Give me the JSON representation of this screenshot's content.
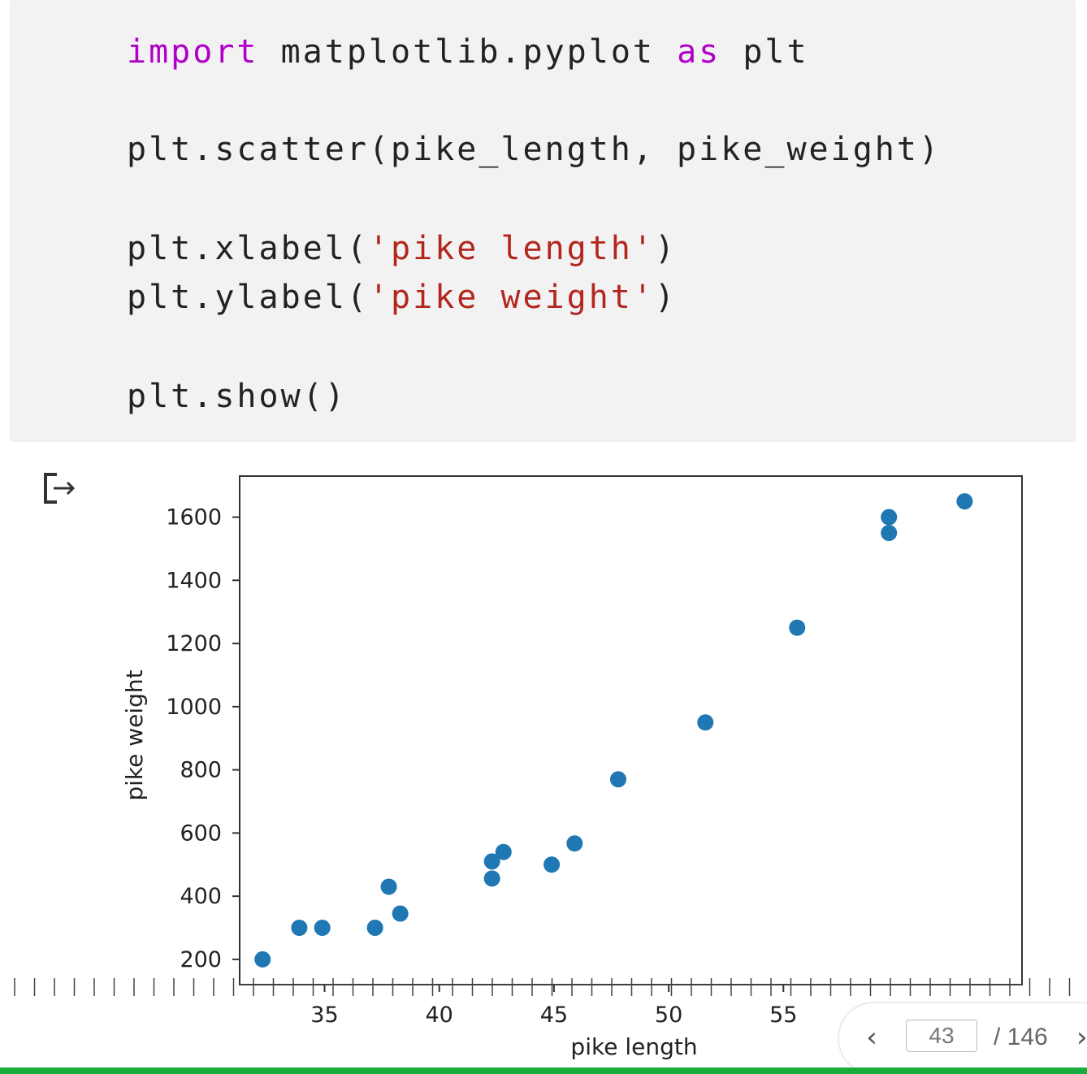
{
  "code": {
    "line1": {
      "kw1": "import",
      "mid": " matplotlib.pyplot ",
      "kw2": "as",
      "end": " plt"
    },
    "line2": "plt.scatter(pike_length, pike_weight)",
    "line3": {
      "pre": "plt.xlabel(",
      "str": "'pike length'",
      "post": ")"
    },
    "line4": {
      "pre": "plt.ylabel(",
      "str": "'pike weight'",
      "post": ")"
    },
    "line5": "plt.show()"
  },
  "output_icon": "output-arrow-icon",
  "chart_data": {
    "type": "scatter",
    "xlabel": "pike length",
    "ylabel": "pike weight",
    "xlim": [
      31.3,
      65.4
    ],
    "ylim": [
      120,
      1730
    ],
    "xticks": [
      35,
      40,
      45,
      50,
      55
    ],
    "yticks": [
      200,
      400,
      600,
      800,
      1000,
      1200,
      1400,
      1600
    ],
    "grid": false,
    "marker_color": "#1f77b4",
    "points": [
      {
        "x": 32.3,
        "y": 200
      },
      {
        "x": 33.9,
        "y": 300
      },
      {
        "x": 34.9,
        "y": 300
      },
      {
        "x": 37.2,
        "y": 300
      },
      {
        "x": 37.8,
        "y": 430
      },
      {
        "x": 38.3,
        "y": 345
      },
      {
        "x": 42.3,
        "y": 456
      },
      {
        "x": 42.3,
        "y": 510
      },
      {
        "x": 42.8,
        "y": 540
      },
      {
        "x": 44.9,
        "y": 500
      },
      {
        "x": 45.9,
        "y": 567
      },
      {
        "x": 47.8,
        "y": 770
      },
      {
        "x": 51.6,
        "y": 950
      },
      {
        "x": 55.6,
        "y": 1250
      },
      {
        "x": 59.6,
        "y": 1600
      },
      {
        "x": 59.6,
        "y": 1550
      },
      {
        "x": 62.9,
        "y": 1650
      }
    ]
  },
  "pager": {
    "prev_icon": "chevron-left-icon",
    "prev_glyph": "‹",
    "current_page": "43",
    "total": "/ 146",
    "next_icon": "chevron-right-icon",
    "next_glyph": "›"
  },
  "colors": {
    "progress": "#1aab3c",
    "keyword": "#b000c8",
    "string": "#b3261e"
  }
}
